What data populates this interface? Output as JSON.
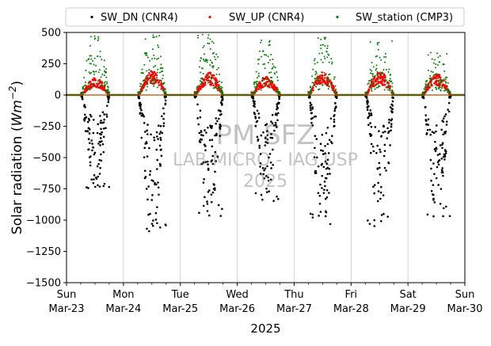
{
  "chart_data": {
    "type": "scatter",
    "title": "",
    "xlabel": "2025",
    "ylabel_parts": [
      "Solar radiation (",
      "Wm",
      "−2",
      ")"
    ],
    "ylim": [
      -1500,
      500
    ],
    "yticks": [
      -1500,
      -1250,
      -1000,
      -750,
      -500,
      -250,
      0,
      250,
      500
    ],
    "ytick_labels": [
      "−1500",
      "−1250",
      "−1000",
      "−750",
      "−500",
      "−250",
      "0",
      "250",
      "500"
    ],
    "xlim_days": [
      0,
      7
    ],
    "xticks": [
      {
        "day": 0,
        "line1": "Sun",
        "line2": "Mar-23"
      },
      {
        "day": 1,
        "line1": "Mon",
        "line2": "Mar-24"
      },
      {
        "day": 2,
        "line1": "Tue",
        "line2": "Mar-25"
      },
      {
        "day": 3,
        "line1": "Wed",
        "line2": "Mar-26"
      },
      {
        "day": 4,
        "line1": "Thu",
        "line2": "Mar-27"
      },
      {
        "day": 5,
        "line1": "Fri",
        "line2": "Mar-28"
      },
      {
        "day": 6,
        "line1": "Sat",
        "line2": "Mar-29"
      },
      {
        "day": 7,
        "line1": "Sun",
        "line2": "Mar-30"
      }
    ],
    "legend_position": "top",
    "grid": "vertical",
    "series": [
      {
        "name": "SW_DN (CNR4)",
        "color": "#000000",
        "marker": "dot-large",
        "daily_extreme": [
          -760,
          -1100,
          -970,
          -850,
          -1040,
          -1060,
          -970
        ],
        "sign": -1
      },
      {
        "name": "SW_UP (CNR4)",
        "color": "#ff0000",
        "marker": "dot-medium",
        "daily_extreme": [
          140,
          195,
          180,
          145,
          185,
          185,
          170
        ],
        "sign": 1
      },
      {
        "name": "SW_station (CMP3)",
        "color": "#008000",
        "marker": "dot-small",
        "daily_extreme": [
          490,
          480,
          490,
          450,
          470,
          440,
          340
        ],
        "sign": 1
      }
    ],
    "watermark": {
      "line1": "PM SFZ",
      "line2": "LAB MICRO - IAG USP",
      "line3": "2025"
    }
  }
}
